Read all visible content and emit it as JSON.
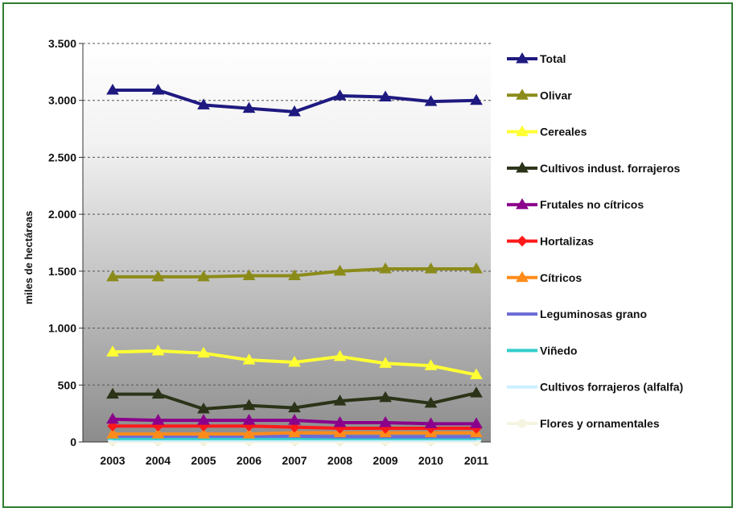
{
  "chart_data": {
    "type": "line",
    "title": "",
    "xlabel": "",
    "ylabel": "miles de hectáreas",
    "categories": [
      "2003",
      "2004",
      "2005",
      "2006",
      "2007",
      "2008",
      "2009",
      "2010",
      "2011"
    ],
    "ylim": [
      0,
      3500
    ],
    "yticks": [
      0,
      500,
      1000,
      1500,
      2000,
      2500,
      3000,
      3500
    ],
    "ytick_labels": [
      "0",
      "500",
      "1.000",
      "1.500",
      "2.000",
      "2.500",
      "3.000",
      "3.500"
    ],
    "grid": "horizontal dashed",
    "legend_position": "right",
    "series": [
      {
        "name": "Total",
        "color": "#1f1a80",
        "marker": "triangle",
        "values": [
          3090,
          3090,
          2960,
          2930,
          2900,
          3040,
          3030,
          2990,
          3000
        ]
      },
      {
        "name": "Olivar",
        "color": "#8b8b1a",
        "marker": "triangle",
        "values": [
          1450,
          1450,
          1450,
          1460,
          1460,
          1500,
          1520,
          1520,
          1520
        ]
      },
      {
        "name": "Cereales",
        "color": "#ffff33",
        "marker": "triangle",
        "values": [
          790,
          800,
          780,
          720,
          700,
          750,
          690,
          670,
          590
        ]
      },
      {
        "name": "Cultivos indust. forrajeros",
        "color": "#2b3318",
        "marker": "triangle",
        "values": [
          420,
          420,
          290,
          320,
          300,
          360,
          390,
          340,
          430
        ]
      },
      {
        "name": "Frutales no cítricos",
        "color": "#8b008b",
        "marker": "triangle",
        "values": [
          200,
          190,
          190,
          190,
          190,
          170,
          170,
          160,
          160
        ]
      },
      {
        "name": "Hortalizas",
        "color": "#ff1a1a",
        "marker": "diamond",
        "values": [
          140,
          140,
          140,
          140,
          130,
          120,
          120,
          120,
          120
        ]
      },
      {
        "name": "Cítricos",
        "color": "#ff8c1a",
        "marker": "triangle",
        "values": [
          70,
          70,
          70,
          70,
          80,
          80,
          80,
          80,
          80
        ]
      },
      {
        "name": "Leguminosas grano",
        "color": "#6b6bd6",
        "marker": "dash",
        "values": [
          50,
          50,
          50,
          50,
          50,
          45,
          45,
          45,
          45
        ]
      },
      {
        "name": "Viñedo",
        "color": "#33cccc",
        "marker": "dash",
        "values": [
          30,
          30,
          30,
          30,
          30,
          30,
          30,
          30,
          30
        ]
      },
      {
        "name": "Cultivos forrajeros (alfalfa)",
        "color": "#ccf0ff",
        "marker": "dash",
        "values": [
          15,
          15,
          15,
          15,
          15,
          15,
          15,
          15,
          15
        ]
      },
      {
        "name": "Flores y ornamentales",
        "color": "#f4f4e0",
        "marker": "circle",
        "values": [
          5,
          5,
          5,
          5,
          5,
          5,
          5,
          5,
          5
        ]
      }
    ]
  }
}
